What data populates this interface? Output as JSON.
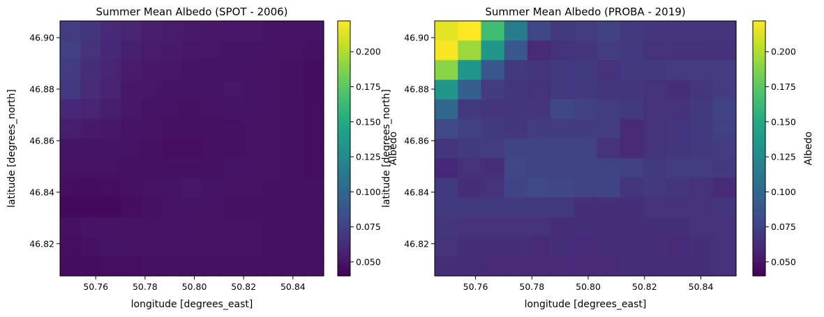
{
  "chart_data": [
    {
      "type": "heatmap",
      "title": "Summer Mean Albedo (SPOT - 2006)",
      "xlabel": "longitude [degrees_east]",
      "ylabel": "latitude [degrees_north]",
      "colorbar_label": "Albedo",
      "colormap": "viridis",
      "vmin": 0.04,
      "vmax": 0.222,
      "xlim": [
        50.7455,
        50.8525
      ],
      "ylim": [
        46.8075,
        46.9065
      ],
      "x_ticks": [
        50.76,
        50.78,
        50.8,
        50.82,
        50.84
      ],
      "x_tick_labels": [
        "50.76",
        "50.78",
        "50.80",
        "50.82",
        "50.84"
      ],
      "y_ticks": [
        46.82,
        46.84,
        46.86,
        46.88,
        46.9
      ],
      "y_tick_labels": [
        "46.82",
        "46.84",
        "46.86",
        "46.88",
        "46.90"
      ],
      "colorbar_ticks": [
        0.05,
        0.075,
        0.1,
        0.125,
        0.15,
        0.175,
        0.2
      ],
      "colorbar_tick_labels": [
        "0.050",
        "0.075",
        "0.100",
        "0.125",
        "0.150",
        "0.175",
        "0.200"
      ],
      "grid_order": "rows north to south, columns west to east",
      "values": [
        [
          0.072,
          0.068,
          0.062,
          0.058,
          0.055,
          0.054,
          0.053,
          0.052,
          0.051,
          0.051,
          0.05,
          0.05,
          0.05
        ],
        [
          0.074,
          0.066,
          0.06,
          0.056,
          0.054,
          0.053,
          0.052,
          0.051,
          0.05,
          0.05,
          0.049,
          0.049,
          0.048
        ],
        [
          0.072,
          0.064,
          0.058,
          0.054,
          0.052,
          0.051,
          0.05,
          0.05,
          0.05,
          0.049,
          0.049,
          0.048,
          0.046
        ],
        [
          0.07,
          0.062,
          0.057,
          0.052,
          0.051,
          0.05,
          0.05,
          0.05,
          0.051,
          0.05,
          0.049,
          0.048,
          0.046
        ],
        [
          0.06,
          0.058,
          0.055,
          0.052,
          0.05,
          0.049,
          0.048,
          0.049,
          0.05,
          0.05,
          0.049,
          0.048,
          0.047
        ],
        [
          0.055,
          0.053,
          0.052,
          0.05,
          0.049,
          0.048,
          0.048,
          0.048,
          0.048,
          0.049,
          0.049,
          0.048,
          0.047
        ],
        [
          0.05,
          0.05,
          0.05,
          0.049,
          0.048,
          0.047,
          0.047,
          0.048,
          0.048,
          0.049,
          0.049,
          0.048,
          0.047
        ],
        [
          0.049,
          0.049,
          0.049,
          0.048,
          0.048,
          0.048,
          0.048,
          0.048,
          0.05,
          0.049,
          0.049,
          0.048,
          0.047
        ],
        [
          0.047,
          0.046,
          0.047,
          0.048,
          0.049,
          0.05,
          0.051,
          0.05,
          0.049,
          0.049,
          0.048,
          0.048,
          0.048
        ],
        [
          0.044,
          0.044,
          0.044,
          0.047,
          0.048,
          0.049,
          0.05,
          0.049,
          0.048,
          0.048,
          0.048,
          0.048,
          0.048
        ],
        [
          0.048,
          0.05,
          0.049,
          0.049,
          0.049,
          0.05,
          0.049,
          0.049,
          0.049,
          0.049,
          0.048,
          0.048,
          0.048
        ],
        [
          0.047,
          0.048,
          0.05,
          0.049,
          0.049,
          0.049,
          0.049,
          0.049,
          0.049,
          0.049,
          0.048,
          0.048,
          0.048
        ],
        [
          0.046,
          0.046,
          0.047,
          0.047,
          0.048,
          0.048,
          0.048,
          0.048,
          0.048,
          0.048,
          0.048,
          0.048,
          0.048
        ]
      ]
    },
    {
      "type": "heatmap",
      "title": "Summer Mean Albedo (PROBA - 2019)",
      "xlabel": "longitude [degrees_east]",
      "ylabel": "latitude [degrees_north]",
      "colorbar_label": "Albedo",
      "colormap": "viridis",
      "vmin": 0.04,
      "vmax": 0.222,
      "xlim": [
        50.7455,
        50.8525
      ],
      "ylim": [
        46.8075,
        46.9065
      ],
      "x_ticks": [
        50.76,
        50.78,
        50.8,
        50.82,
        50.84
      ],
      "x_tick_labels": [
        "50.76",
        "50.78",
        "50.80",
        "50.82",
        "50.84"
      ],
      "y_ticks": [
        46.82,
        46.84,
        46.86,
        46.88,
        46.9
      ],
      "y_tick_labels": [
        "46.82",
        "46.84",
        "46.86",
        "46.88",
        "46.90"
      ],
      "colorbar_ticks": [
        0.05,
        0.075,
        0.1,
        0.125,
        0.15,
        0.175,
        0.2
      ],
      "colorbar_tick_labels": [
        "0.050",
        "0.075",
        "0.100",
        "0.125",
        "0.150",
        "0.175",
        "0.200"
      ],
      "grid_order": "rows north to south, columns west to east",
      "values": [
        [
          0.215,
          0.222,
          0.165,
          0.115,
          0.078,
          0.07,
          0.072,
          0.074,
          0.07,
          0.068,
          0.068,
          0.068,
          0.068
        ],
        [
          0.22,
          0.195,
          0.135,
          0.09,
          0.062,
          0.066,
          0.068,
          0.072,
          0.07,
          0.066,
          0.066,
          0.066,
          0.066
        ],
        [
          0.19,
          0.135,
          0.09,
          0.07,
          0.068,
          0.07,
          0.07,
          0.066,
          0.07,
          0.07,
          0.072,
          0.072,
          0.072
        ],
        [
          0.135,
          0.095,
          0.072,
          0.068,
          0.066,
          0.07,
          0.07,
          0.068,
          0.068,
          0.066,
          0.064,
          0.068,
          0.072
        ],
        [
          0.1,
          0.07,
          0.068,
          0.068,
          0.068,
          0.078,
          0.074,
          0.072,
          0.07,
          0.066,
          0.066,
          0.07,
          0.076
        ],
        [
          0.08,
          0.074,
          0.07,
          0.068,
          0.072,
          0.072,
          0.072,
          0.072,
          0.062,
          0.066,
          0.068,
          0.07,
          0.074
        ],
        [
          0.068,
          0.07,
          0.072,
          0.076,
          0.076,
          0.076,
          0.076,
          0.066,
          0.062,
          0.066,
          0.068,
          0.07,
          0.072
        ],
        [
          0.06,
          0.066,
          0.064,
          0.078,
          0.076,
          0.076,
          0.076,
          0.076,
          0.074,
          0.07,
          0.072,
          0.072,
          0.07
        ],
        [
          0.07,
          0.064,
          0.066,
          0.076,
          0.08,
          0.078,
          0.076,
          0.076,
          0.068,
          0.07,
          0.068,
          0.066,
          0.062
        ],
        [
          0.07,
          0.07,
          0.07,
          0.07,
          0.07,
          0.07,
          0.064,
          0.064,
          0.064,
          0.066,
          0.066,
          0.066,
          0.068
        ],
        [
          0.068,
          0.066,
          0.066,
          0.066,
          0.066,
          0.064,
          0.064,
          0.064,
          0.064,
          0.064,
          0.064,
          0.066,
          0.066
        ],
        [
          0.066,
          0.064,
          0.064,
          0.064,
          0.062,
          0.064,
          0.062,
          0.064,
          0.064,
          0.064,
          0.062,
          0.064,
          0.066
        ],
        [
          0.064,
          0.064,
          0.062,
          0.062,
          0.062,
          0.062,
          0.062,
          0.062,
          0.064,
          0.064,
          0.064,
          0.064,
          0.066
        ]
      ]
    }
  ]
}
